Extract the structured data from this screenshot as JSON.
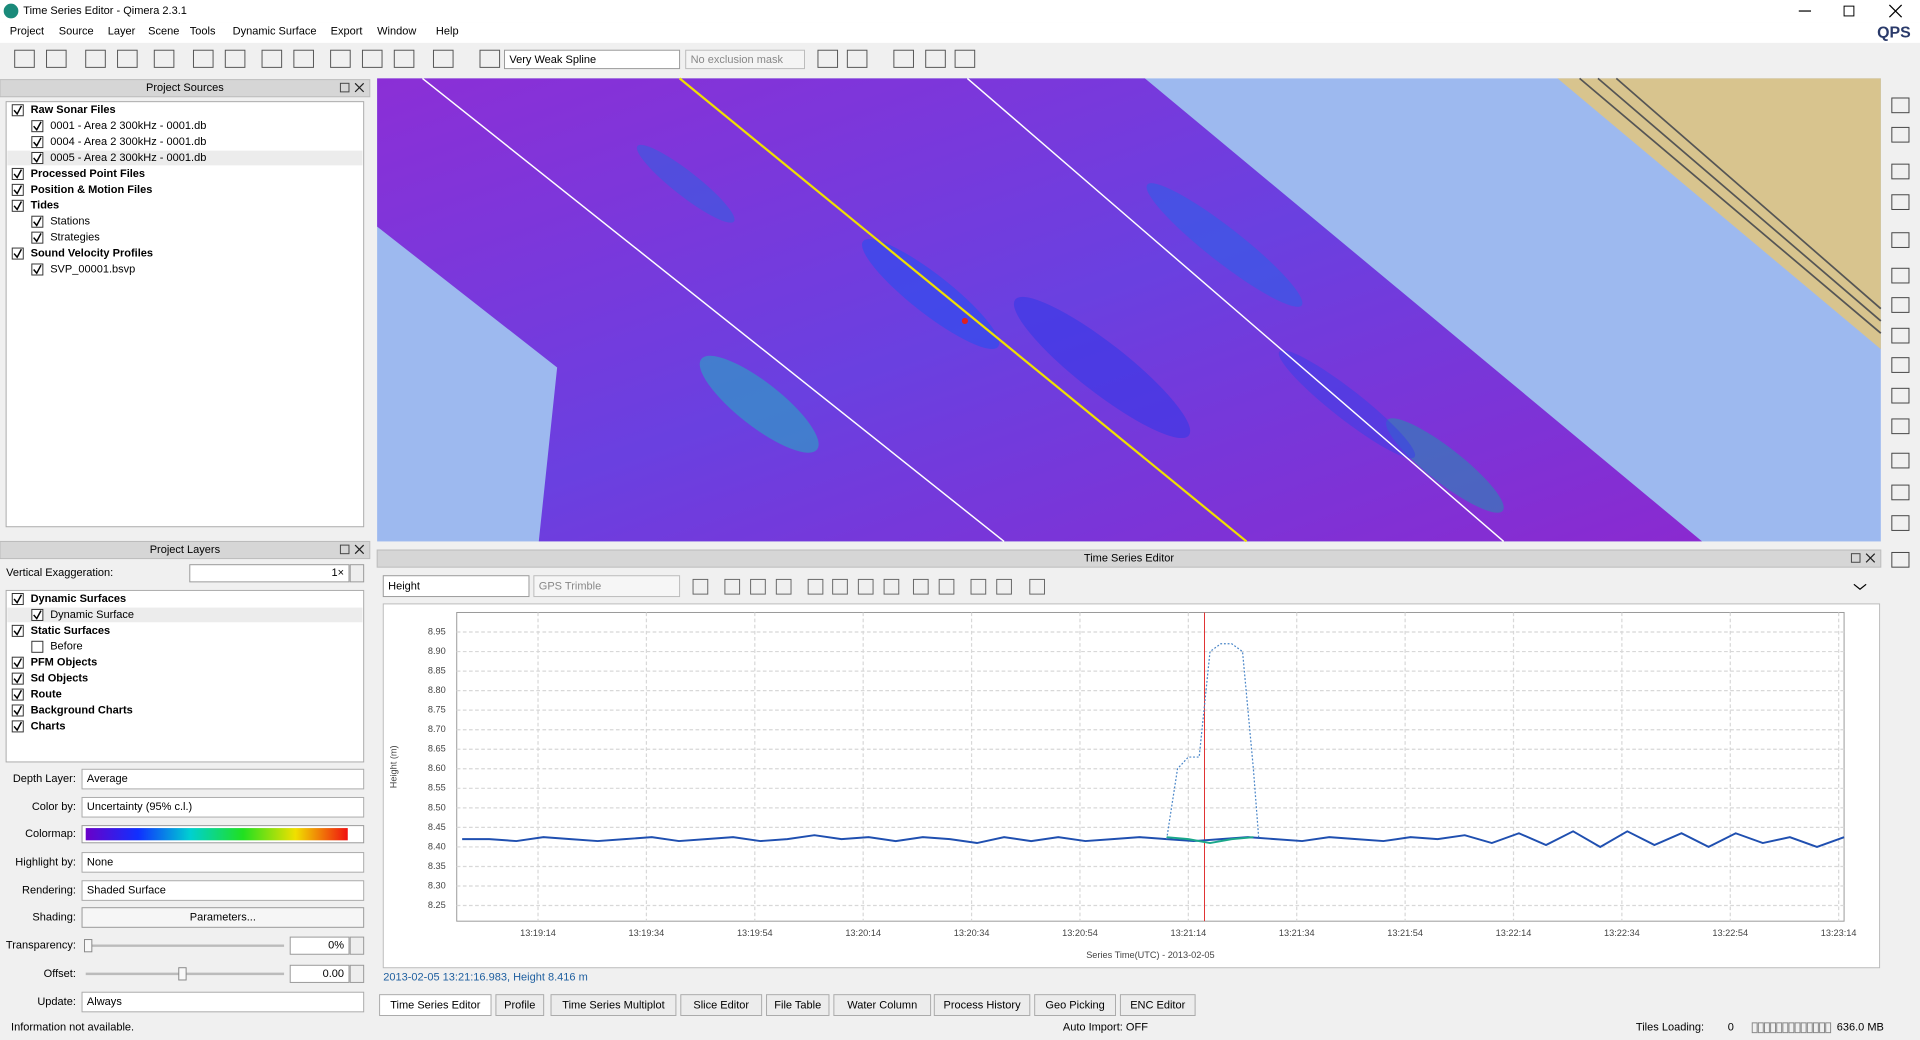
{
  "window": {
    "title": "Time Series Editor - Qimera 2.3.1",
    "brand": "QPS"
  },
  "menu": [
    "Project",
    "Source",
    "Layer",
    "Scene",
    "Tools",
    "Dynamic Surface",
    "Export",
    "Window",
    "Help"
  ],
  "toolbar": {
    "filter": "Very Weak Spline",
    "mask": "No exclusion mask"
  },
  "project_sources": {
    "title": "Project Sources",
    "items": [
      {
        "label": "Raw Sonar Files",
        "checked": true,
        "children": [
          {
            "label": "0001 - Area 2 300kHz - 0001.db",
            "checked": true
          },
          {
            "label": "0004 - Area 2 300kHz - 0001.db",
            "checked": true
          },
          {
            "label": "0005 - Area 2 300kHz - 0001.db",
            "checked": true
          }
        ]
      },
      {
        "label": "Processed Point Files",
        "checked": true
      },
      {
        "label": "Position & Motion Files",
        "checked": true
      },
      {
        "label": "Tides",
        "checked": true,
        "children": [
          {
            "label": "Stations",
            "checked": true
          },
          {
            "label": "Strategies",
            "checked": true
          }
        ]
      },
      {
        "label": "Sound Velocity Profiles",
        "checked": true,
        "children": [
          {
            "label": "SVP_00001.bsvp",
            "checked": true
          }
        ]
      }
    ]
  },
  "project_layers": {
    "title": "Project Layers",
    "vertical_exaggeration": {
      "label": "Vertical Exaggeration:",
      "value": "1×"
    },
    "items": [
      {
        "label": "Dynamic Surfaces",
        "checked": true,
        "children": [
          {
            "label": "Dynamic Surface",
            "checked": true
          }
        ]
      },
      {
        "label": "Static Surfaces",
        "checked": true,
        "children": [
          {
            "label": "Before",
            "checked": false
          }
        ]
      },
      {
        "label": "PFM Objects",
        "checked": true
      },
      {
        "label": "Sd Objects",
        "checked": true
      },
      {
        "label": "Route",
        "checked": true
      },
      {
        "label": "Background Charts",
        "checked": true
      },
      {
        "label": "Charts",
        "checked": true
      }
    ]
  },
  "properties": [
    {
      "label": "Depth Layer:",
      "value": "Average"
    },
    {
      "label": "Color by:",
      "value": "Uncertainty (95% c.l.)"
    },
    {
      "label": "Colormap:"
    },
    {
      "label": "Highlight by:",
      "value": "None"
    },
    {
      "label": "Rendering:",
      "value": "Shaded Surface"
    },
    {
      "label": "Shading:",
      "value": "Parameters..."
    },
    {
      "label": "Transparency:",
      "value": "0%"
    },
    {
      "label": "Offset:",
      "value": "0.00"
    },
    {
      "label": "Update:",
      "value": "Always"
    }
  ],
  "time_series_editor": {
    "title": "Time Series Editor",
    "source": "Height",
    "sensor": "GPS Trimble",
    "status": "2013-02-05 13:21:16.983, Height 8.416 m"
  },
  "chart_data": {
    "type": "line",
    "x_label": "Series Time(UTC) - 2013-02-05",
    "y_label": "Height (m)",
    "xlim": [
      47939,
      48195
    ],
    "ylim": [
      8.21,
      9.0
    ],
    "grid": true,
    "cursor_x": 48076.983,
    "cursor_color": "#e03030",
    "xticks": [
      {
        "value": 47954,
        "label": "13:19:14"
      },
      {
        "value": 47974,
        "label": "13:19:34"
      },
      {
        "value": 47994,
        "label": "13:19:54"
      },
      {
        "value": 48014,
        "label": "13:20:14"
      },
      {
        "value": 48034,
        "label": "13:20:34"
      },
      {
        "value": 48054,
        "label": "13:20:54"
      },
      {
        "value": 48074,
        "label": "13:21:14"
      },
      {
        "value": 48094,
        "label": "13:21:34"
      },
      {
        "value": 48114,
        "label": "13:21:54"
      },
      {
        "value": 48134,
        "label": "13:22:14"
      },
      {
        "value": 48154,
        "label": "13:22:34"
      },
      {
        "value": 48174,
        "label": "13:22:54"
      },
      {
        "value": 48194,
        "label": "13:23:14"
      }
    ],
    "yticks": [
      8.25,
      {
        "value": 8.3,
        "label": "8.30"
      },
      8.35,
      {
        "value": 8.4,
        "label": "8.40"
      },
      8.45,
      {
        "value": 8.5,
        "label": "8.50"
      },
      8.55,
      {
        "value": 8.6,
        "label": "8.60"
      },
      8.65,
      {
        "value": 8.7,
        "label": "8.70"
      },
      8.75,
      {
        "value": 8.8,
        "label": "8.80"
      },
      8.85,
      {
        "value": 8.9,
        "label": "8.90"
      },
      8.95
    ],
    "series": [
      {
        "color": "#1f4fb0",
        "dotted": false,
        "x": [
          47940,
          47945,
          47950,
          47955,
          47960,
          47965,
          47970,
          47975,
          47980,
          47985,
          47990,
          47995,
          48000,
          48005,
          48010,
          48015,
          48020,
          48025,
          48030,
          48035,
          48040,
          48045,
          48050,
          48055,
          48060,
          48065,
          48070,
          48075,
          48080,
          48085,
          48090,
          48095,
          48100,
          48105,
          48110,
          48115,
          48120,
          48125,
          48130,
          48135,
          48140,
          48145,
          48150,
          48155,
          48160,
          48165,
          48170,
          48175,
          48180,
          48185,
          48190,
          48195
        ],
        "values": [
          8.42,
          8.42,
          8.415,
          8.425,
          8.42,
          8.415,
          8.42,
          8.425,
          8.415,
          8.42,
          8.425,
          8.415,
          8.42,
          8.43,
          8.42,
          8.425,
          8.415,
          8.425,
          8.42,
          8.41,
          8.425,
          8.415,
          8.425,
          8.415,
          8.42,
          8.425,
          8.42,
          8.415,
          8.42,
          8.425,
          8.42,
          8.415,
          8.425,
          8.42,
          8.415,
          8.425,
          8.42,
          8.43,
          8.41,
          8.435,
          8.405,
          8.44,
          8.4,
          8.44,
          8.405,
          8.435,
          8.4,
          8.435,
          8.41,
          8.425,
          8.4,
          8.425
        ]
      },
      {
        "color": "#4a86c8",
        "dotted": true,
        "x": [
          48070,
          48072,
          48074,
          48076,
          48078,
          48080,
          48082,
          48084,
          48086,
          48087
        ],
        "values": [
          8.42,
          8.6,
          8.63,
          8.63,
          8.9,
          8.92,
          8.92,
          8.9,
          8.6,
          8.42
        ]
      },
      {
        "color": "#1aa88a",
        "dotted": false,
        "x": [
          48070,
          48074,
          48078,
          48082,
          48086
        ],
        "values": [
          8.425,
          8.42,
          8.41,
          8.42,
          8.425
        ]
      }
    ]
  },
  "tabs": [
    "Time Series Editor",
    "Profile",
    "Time Series Multiplot",
    "Slice Editor",
    "File Table",
    "Water Column",
    "Process History",
    "Geo Picking",
    "ENC Editor"
  ],
  "status_bar": {
    "info": "Information not available.",
    "auto_import": "Auto Import: OFF",
    "tiles_label": "Tiles Loading:",
    "tiles_value": "0",
    "memory": "636.0 MB"
  }
}
